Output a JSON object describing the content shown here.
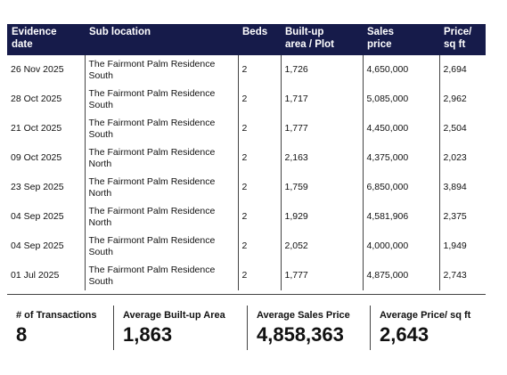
{
  "table": {
    "header": [
      "Evidence date",
      "Sub location",
      "Beds",
      "Built-up area / Plot",
      "Sales price",
      "Price/ sq ft"
    ],
    "rows": [
      [
        "26 Nov 2025",
        "The Fairmont Palm Residence South",
        "2",
        "1,726",
        "4,650,000",
        "2,694"
      ],
      [
        "28 Oct 2025",
        "The Fairmont Palm Residence South",
        "2",
        "1,717",
        "5,085,000",
        "2,962"
      ],
      [
        "21 Oct 2025",
        "The Fairmont Palm Residence South",
        "2",
        "1,777",
        "4,450,000",
        "2,504"
      ],
      [
        "09 Oct 2025",
        "The Fairmont Palm Residence North",
        "2",
        "2,163",
        "4,375,000",
        "2,023"
      ],
      [
        "23 Sep 2025",
        "The Fairmont Palm Residence North",
        "2",
        "1,759",
        "6,850,000",
        "3,894"
      ],
      [
        "04 Sep 2025",
        "The Fairmont Palm Residence North",
        "2",
        "1,929",
        "4,581,906",
        "2,375"
      ],
      [
        "04 Sep 2025",
        "The Fairmont Palm Residence South",
        "2",
        "2,052",
        "4,000,000",
        "1,949"
      ],
      [
        "01 Jul 2025",
        "The Fairmont Palm Residence South",
        "2",
        "1,777",
        "4,875,000",
        "2,743"
      ]
    ]
  },
  "summary": [
    {
      "label": "# of Transactions",
      "value": "8"
    },
    {
      "label": "Average Built-up Area",
      "value": "1,863"
    },
    {
      "label": "Average Sales Price",
      "value": "4,858,363"
    },
    {
      "label": "Average Price/ sq ft",
      "value": "2,643"
    }
  ]
}
